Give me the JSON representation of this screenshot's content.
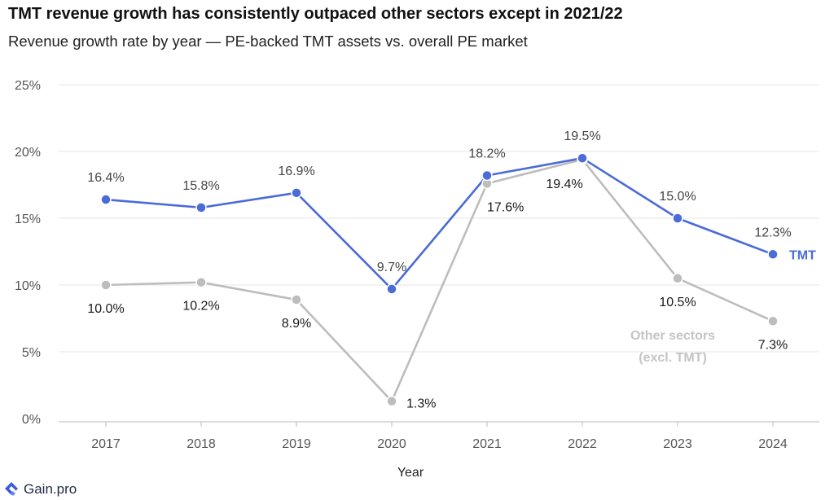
{
  "header": {
    "title": "TMT revenue growth has consistently outpaced other sectors except in 2021/22",
    "subtitle": "Revenue growth rate by year — PE-backed TMT assets vs. overall PE market"
  },
  "brand": {
    "logo_text": "Gain.pro",
    "logo_icon": "gain-pro-logo-icon"
  },
  "colors": {
    "tmt": "#4a6bd8",
    "other": "#bdbdbd",
    "grid": "#e6e6e6",
    "axis": "#bbbbbb"
  },
  "chart_data": {
    "type": "line",
    "title": "",
    "xlabel": "Year",
    "ylabel": "",
    "categories": [
      "2017",
      "2018",
      "2019",
      "2020",
      "2021",
      "2022",
      "2023",
      "2024"
    ],
    "ylim": [
      0,
      25
    ],
    "yticks": [
      "0%",
      "5%",
      "10%",
      "15%",
      "20%",
      "25%"
    ],
    "grid": true,
    "legend": "inline labels at line ends",
    "series": [
      {
        "name": "TMT",
        "color": "#4a6bd8",
        "values": [
          16.4,
          15.8,
          16.9,
          9.7,
          18.2,
          19.5,
          15.0,
          12.3
        ],
        "labels": [
          "16.4%",
          "15.8%",
          "16.9%",
          "9.7%",
          "18.2%",
          "19.5%",
          "15.0%",
          "12.3%"
        ]
      },
      {
        "name": "Other sectors (excl. TMT)",
        "name_lines": [
          "Other sectors",
          "(excl. TMT)"
        ],
        "color": "#bdbdbd",
        "values": [
          10.0,
          10.2,
          8.9,
          1.3,
          17.6,
          19.4,
          10.5,
          7.3
        ],
        "labels": [
          "10.0%",
          "10.2%",
          "8.9%",
          "1.3%",
          "17.6%",
          "19.4%",
          "10.5%",
          "7.3%"
        ]
      }
    ]
  }
}
